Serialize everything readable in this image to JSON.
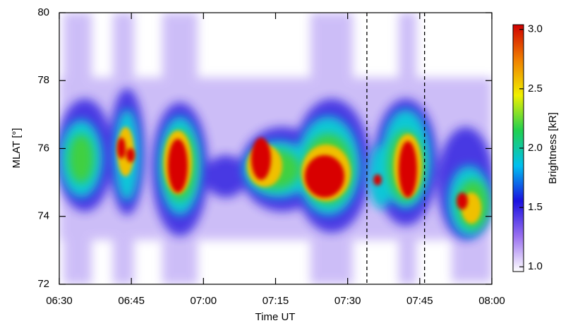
{
  "chart_data": {
    "type": "heatmap",
    "x_label": "Time UT",
    "y_label": "MLAT [°]",
    "xlim": [
      390,
      480
    ],
    "xticks": [
      {
        "value": 390,
        "label": "06:30"
      },
      {
        "value": 405,
        "label": "06:45"
      },
      {
        "value": 420,
        "label": "07:00"
      },
      {
        "value": 435,
        "label": "07:15"
      },
      {
        "value": 450,
        "label": "07:30"
      },
      {
        "value": 465,
        "label": "07:45"
      },
      {
        "value": 480,
        "label": "08:00"
      }
    ],
    "ylim": [
      72,
      80
    ],
    "yticks": [
      72,
      74,
      76,
      78,
      80
    ],
    "markers": [
      454,
      466
    ],
    "colorbar": {
      "label": "Brightness [kR]",
      "lim": [
        0.96,
        3.04
      ],
      "ticks": [
        {
          "value": 1,
          "label": "1.0"
        },
        {
          "value": 1.5,
          "label": "1.5"
        },
        {
          "value": 2,
          "label": "2.0"
        },
        {
          "value": 2.5,
          "label": "2.5"
        },
        {
          "value": 3,
          "label": "3.0"
        }
      ],
      "colormap": [
        "#ffffff",
        "#9a70f0",
        "#1a10e0",
        "#00c0f0",
        "#20d050",
        "#f0f000",
        "#f08000",
        "#d00000"
      ]
    }
  }
}
